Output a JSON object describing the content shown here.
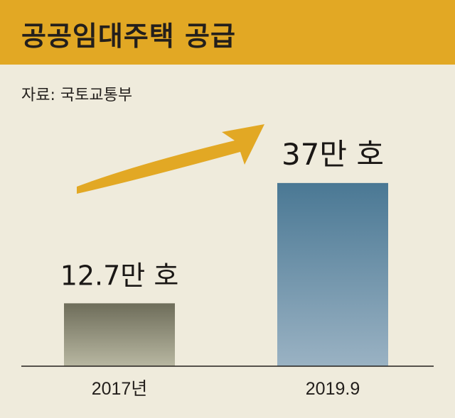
{
  "header": {
    "title": "공공임대주택 공급",
    "source": "자료: 국토교통부"
  },
  "colors": {
    "header_bg": "#e2a824",
    "background": "#efebdc",
    "arrow": "#e2a824",
    "bar_2017_top": "#6e6d5a",
    "bar_2017_bottom": "#b8b7a1",
    "bar_2019_top": "#4a7894",
    "bar_2019_bottom": "#9ab2c3"
  },
  "chart_data": {
    "type": "bar",
    "categories": [
      "2017년",
      "2019.9"
    ],
    "values": [
      12.7,
      37
    ],
    "data_labels": [
      "12.7만 호",
      "37만 호"
    ],
    "unit": "만 호",
    "ylim": [
      0,
      43
    ],
    "grid": false,
    "legend": "none",
    "annotation": "increase-arrow"
  }
}
